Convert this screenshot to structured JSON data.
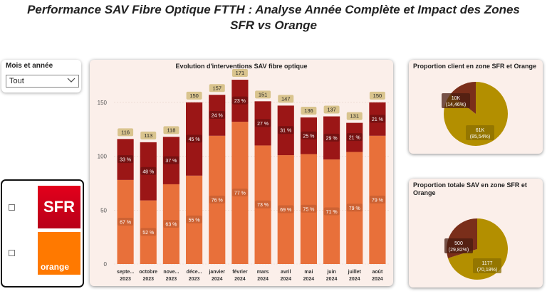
{
  "title_line1": "Performance SAV Fibre Optique FTTH : Analyse Année Complète et Impact des Zones",
  "title_line2": "SFR vs Orange",
  "slicer": {
    "label": "Mois et année",
    "value": "Tout"
  },
  "logos": {
    "sfr": "SFR",
    "orange": "orange"
  },
  "colors": {
    "orange_zone": "#e8703a",
    "sfr_zone": "#9b1616",
    "total_badge": "#d9c48e",
    "pie_large": "#b38f00",
    "pie_small": "#7a2e1a"
  },
  "chart_data": [
    {
      "type": "bar",
      "title": "Evolution d'interventions SAV fibre optique",
      "categories": [
        "septe... 2023",
        "octobre 2023",
        "nove... 2023",
        "déce... 2023",
        "janvier 2024",
        "février 2024",
        "mars 2024",
        "avril 2024",
        "mai 2024",
        "juin 2024",
        "juillet 2024",
        "août 2024"
      ],
      "cat_line1": [
        "septe...",
        "octobre",
        "nove...",
        "déce...",
        "janvier",
        "février",
        "mars",
        "avril",
        "mai",
        "juin",
        "juillet",
        "août"
      ],
      "cat_line2": [
        "2023",
        "2023",
        "2023",
        "2023",
        "2024",
        "2024",
        "2024",
        "2024",
        "2024",
        "2024",
        "2024",
        "2024"
      ],
      "totals": [
        116,
        113,
        118,
        150,
        157,
        171,
        151,
        147,
        136,
        137,
        131,
        150
      ],
      "series": [
        {
          "values": [
            78,
            59,
            74,
            82,
            119,
            132,
            110,
            101,
            102,
            97,
            104,
            119
          ],
          "labels": [
            "67 %",
            "52 %",
            "63 %",
            "55 %",
            "76 %",
            "77 %",
            "73 %",
            "69 %",
            "75 %",
            "71 %",
            "79 %",
            "79 %"
          ]
        },
        {
          "values": [
            38,
            54,
            44,
            68,
            38,
            39,
            41,
            46,
            34,
            40,
            27,
            31
          ],
          "labels": [
            "33 %",
            "48 %",
            "37 %",
            "45 %",
            "24 %",
            "23 %",
            "27 %",
            "31 %",
            "25 %",
            "29 %",
            "21 %",
            "21 %"
          ]
        }
      ],
      "ylim": [
        0,
        175
      ],
      "yticks": [
        0,
        50,
        100,
        150
      ],
      "grid": true
    },
    {
      "type": "pie",
      "title": "Proportion client en zone SFR et Orange",
      "values": [
        85.54,
        14.46
      ],
      "labels": [
        "61K\n(85,54%)",
        "10K\n(14,46%)"
      ]
    },
    {
      "type": "pie",
      "title": "Proportion totale SAV en zone SFR et Orange",
      "values": [
        70.18,
        29.82
      ],
      "labels": [
        "1177\n(70,18%)",
        "500\n(29,82%)"
      ]
    }
  ]
}
